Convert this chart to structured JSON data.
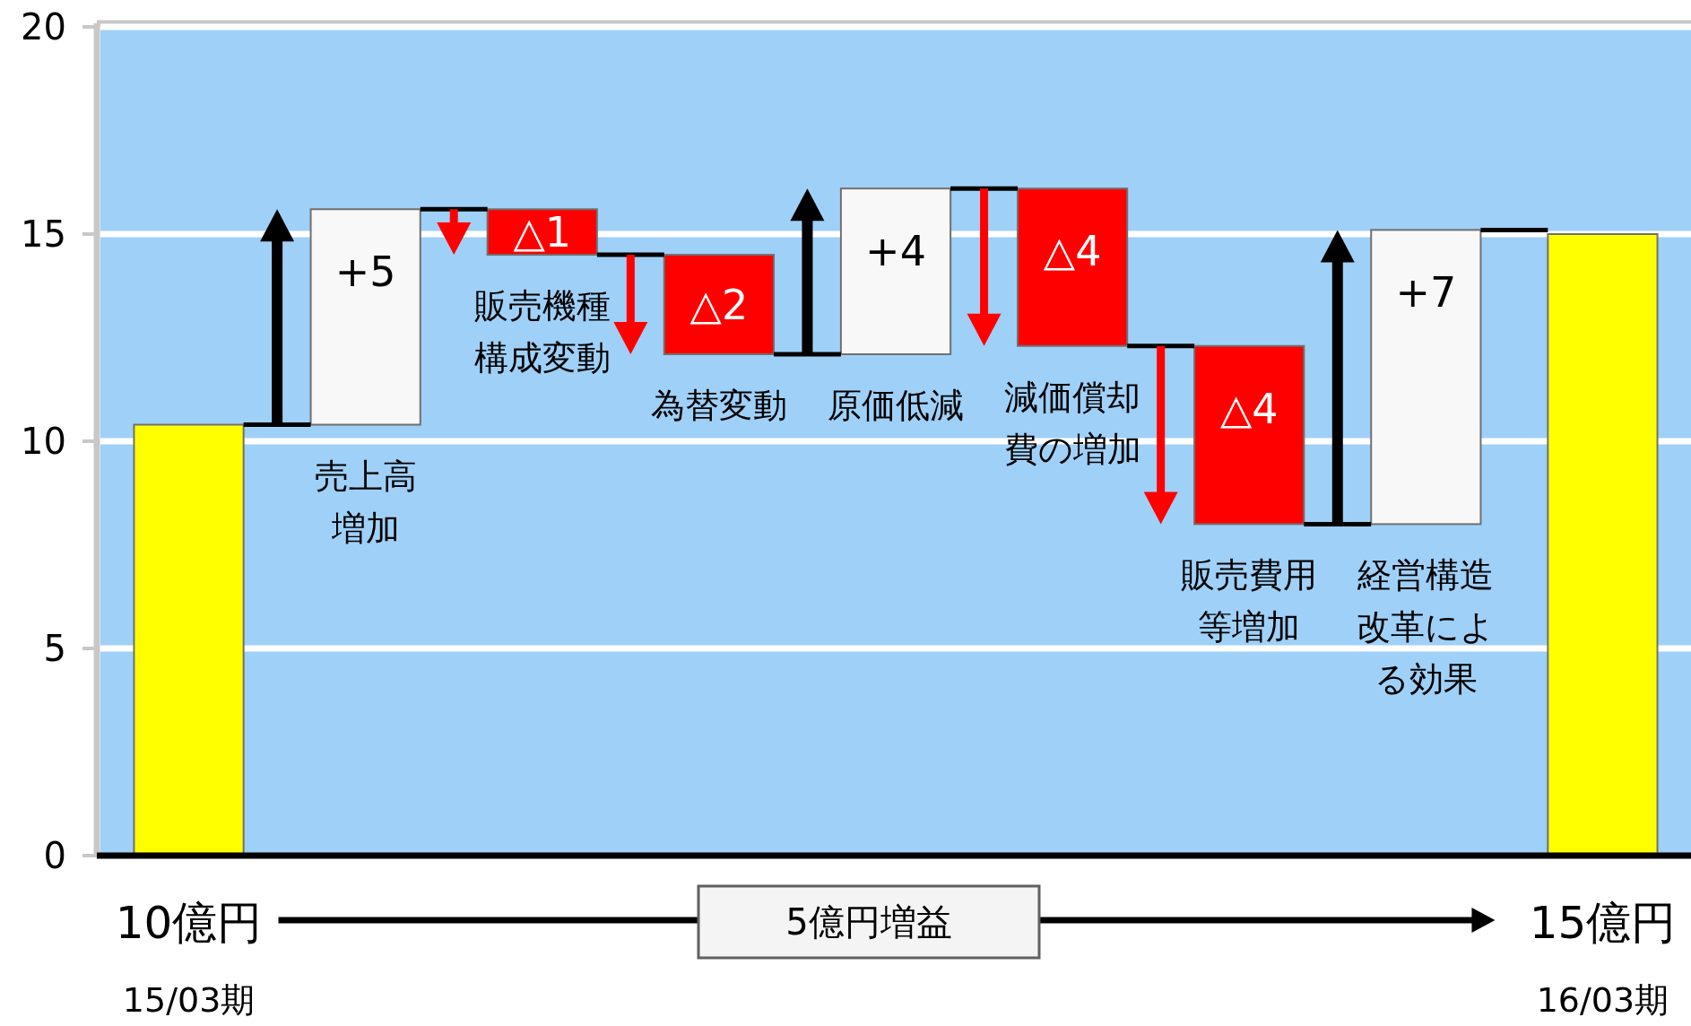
{
  "chart_data": {
    "type": "bar",
    "categories": [
      "15/03期",
      "売上高増加",
      "販売機種構成変動",
      "為替変動",
      "原価低減",
      "減価償却費の増加",
      "販売費用等増加",
      "経営構造改革による効果",
      "16/03期"
    ],
    "values": [
      10.4,
      5.2,
      -1.1,
      -2.4,
      4.0,
      -3.8,
      -4.3,
      7.1,
      15.0
    ],
    "base": [
      0,
      10.4,
      15.6,
      14.5,
      12.1,
      16.1,
      12.3,
      8.0,
      0
    ],
    "colors": [
      "#ffff00",
      "#f8f8f8",
      "#ff0000",
      "#ff0000",
      "#f8f8f8",
      "#ff0000",
      "#ff0000",
      "#f8f8f8",
      "#ffff00"
    ],
    "value_labels": [
      "10億円",
      "+5",
      "△1",
      "△2",
      "+4",
      "△4",
      "△4",
      "+7",
      "15億円"
    ],
    "annotations": [
      "5億円増益"
    ],
    "ylim": [
      0,
      20
    ],
    "yticks": [
      0,
      5,
      10,
      15,
      20
    ],
    "grid": "y"
  }
}
